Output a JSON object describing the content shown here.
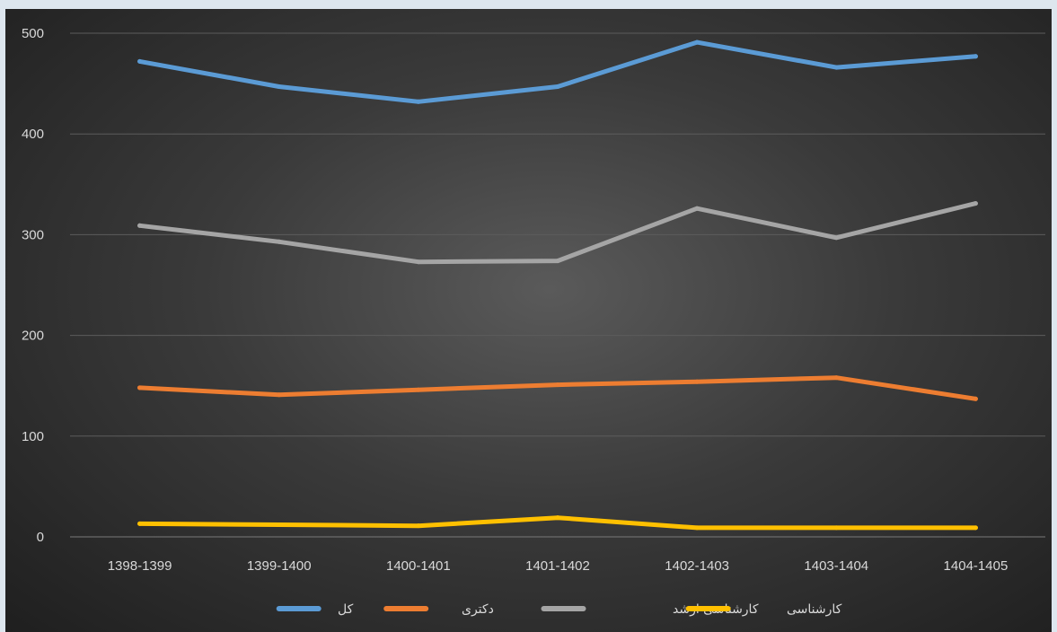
{
  "chart_data": {
    "type": "line",
    "title": "",
    "xlabel": "",
    "ylabel": "",
    "categories": [
      "1398-1399",
      "1399-1400",
      "1400-1401",
      "1401-1402",
      "1402-1403",
      "1403-1404",
      "1404-1405"
    ],
    "ylim": [
      0,
      500
    ],
    "yticks": [
      0,
      100,
      200,
      300,
      400,
      500
    ],
    "grid": true,
    "legend_position": "bottom",
    "series": [
      {
        "name": "کل",
        "color": "#5b9bd5",
        "values": [
          472,
          447,
          432,
          447,
          491,
          466,
          477
        ]
      },
      {
        "name": "دکتری",
        "color": "#ed7d31",
        "values": [
          148,
          141,
          146,
          151,
          154,
          158,
          137
        ]
      },
      {
        "name": "کارشناسی ارشد",
        "color": "#a5a5a5",
        "values": [
          309,
          293,
          273,
          274,
          326,
          297,
          331
        ]
      },
      {
        "name": "کارشناسی",
        "color": "#ffc000",
        "values": [
          13,
          12,
          11,
          19,
          9,
          9,
          9
        ]
      }
    ]
  }
}
